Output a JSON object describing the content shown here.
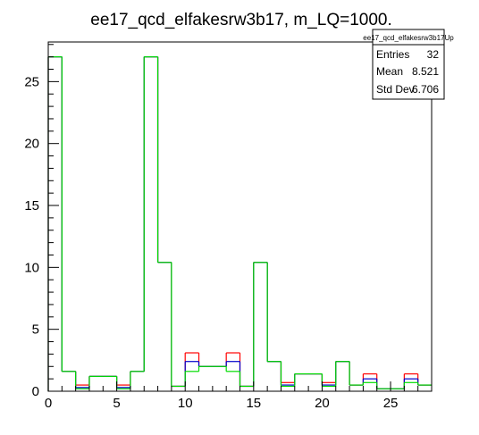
{
  "chart_data": {
    "type": "histogram",
    "title": "ee17_qcd_elfakesrw3b17, m_LQ=1000.",
    "xlabel": "",
    "ylabel": "",
    "xlim": [
      0,
      28
    ],
    "ylim": [
      0,
      28.2
    ],
    "x_ticks": [
      0,
      5,
      10,
      15,
      20,
      25
    ],
    "y_ticks": [
      0,
      5,
      10,
      15,
      20,
      25
    ],
    "bin_edges": [
      0,
      1,
      2,
      3,
      4,
      5,
      6,
      7,
      8,
      9,
      10,
      11,
      12,
      13,
      14,
      15,
      16,
      17,
      18,
      19,
      20,
      21,
      22,
      23,
      24,
      25,
      26,
      27,
      28
    ],
    "series": [
      {
        "color": "#ff0000",
        "values": [
          27,
          1.6,
          0.5,
          1.2,
          1.2,
          0.5,
          1.6,
          27,
          10.4,
          0.4,
          3.1,
          2,
          2,
          3.1,
          0.4,
          10.4,
          2.4,
          0.7,
          1.4,
          1.4,
          0.7,
          2.4,
          0.5,
          1.4,
          0.2,
          0.2,
          1.4,
          0.5
        ]
      },
      {
        "color": "#0000cc",
        "values": [
          27,
          1.6,
          0.3,
          1.2,
          1.2,
          0.3,
          1.6,
          27,
          10.4,
          0.4,
          2.4,
          2,
          2,
          2.4,
          0.4,
          10.4,
          2.4,
          0.5,
          1.4,
          1.4,
          0.5,
          2.4,
          0.5,
          1,
          0.2,
          0.2,
          1,
          0.5
        ]
      },
      {
        "color": "#00dd00",
        "values": [
          27,
          1.6,
          0.2,
          1.2,
          1.2,
          0.2,
          1.6,
          27,
          10.4,
          0.4,
          1.6,
          2,
          2,
          1.6,
          0.4,
          10.4,
          2.4,
          0.4,
          1.4,
          1.4,
          0.4,
          2.4,
          0.5,
          0.7,
          0.2,
          0.2,
          0.7,
          0.5
        ]
      }
    ],
    "stats_box": {
      "title": "ee17_qcd_elfakesrw3b17Up",
      "rows": [
        {
          "label": "Entries",
          "value": "32"
        },
        {
          "label": "Mean",
          "value": "8.521"
        },
        {
          "label": "Std Dev",
          "value": "6.706"
        }
      ]
    }
  }
}
